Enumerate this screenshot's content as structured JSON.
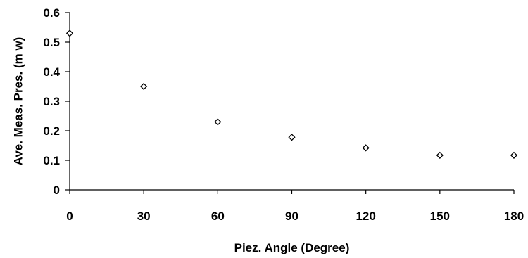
{
  "chart_data": {
    "type": "scatter",
    "xlabel": "Piez. Angle (Degree)",
    "ylabel": "Ave. Meas. Pres. (m w)",
    "xlim": [
      0,
      180
    ],
    "ylim": [
      0,
      0.6
    ],
    "xticks": [
      "0",
      "30",
      "60",
      "90",
      "120",
      "150",
      "180"
    ],
    "yticks": [
      "0",
      "0.1",
      "0.2",
      "0.3",
      "0.4",
      "0.5",
      "0.6"
    ],
    "grid": false,
    "legend": "none",
    "marker": "hollow-diamond",
    "series": [
      {
        "x": [
          0,
          30,
          60,
          90,
          120,
          150,
          180
        ],
        "y": [
          0.53,
          0.35,
          0.23,
          0.178,
          0.142,
          0.117,
          0.117
        ]
      }
    ]
  }
}
